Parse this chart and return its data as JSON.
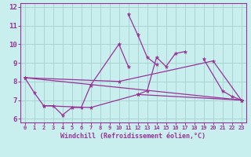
{
  "xlabel": "Windchill (Refroidissement éolien,°C)",
  "xlim": [
    -0.5,
    23.5
  ],
  "ylim": [
    5.8,
    12.2
  ],
  "yticks": [
    6,
    7,
    8,
    9,
    10,
    11,
    12
  ],
  "xticks": [
    0,
    1,
    2,
    3,
    4,
    5,
    6,
    7,
    8,
    9,
    10,
    11,
    12,
    13,
    14,
    15,
    16,
    17,
    18,
    19,
    20,
    21,
    22,
    23
  ],
  "background_color": "#c8eeee",
  "grid_color": "#aad4d4",
  "line_color": "#993399",
  "lines": [
    {
      "x": [
        0,
        1,
        2,
        3,
        4,
        5,
        6,
        7,
        10,
        11
      ],
      "y": [
        8.2,
        7.4,
        6.7,
        6.7,
        6.2,
        6.6,
        6.6,
        7.8,
        10.0,
        8.8
      ]
    },
    {
      "x": [
        11,
        12,
        13,
        14
      ],
      "y": [
        11.6,
        10.5,
        9.3,
        8.9
      ]
    },
    {
      "x": [
        12,
        13,
        14,
        15,
        16,
        17
      ],
      "y": [
        7.3,
        7.5,
        9.3,
        8.8,
        9.5,
        9.6
      ]
    },
    {
      "x": [
        19,
        21,
        22,
        23
      ],
      "y": [
        9.2,
        7.5,
        7.2,
        7.0
      ]
    },
    {
      "x": [
        0,
        10,
        20,
        23
      ],
      "y": [
        8.2,
        8.0,
        9.1,
        7.0
      ]
    },
    {
      "x": [
        0,
        23
      ],
      "y": [
        8.2,
        7.0
      ]
    },
    {
      "x": [
        2,
        7,
        12,
        23
      ],
      "y": [
        6.7,
        6.6,
        7.3,
        7.0
      ]
    }
  ]
}
